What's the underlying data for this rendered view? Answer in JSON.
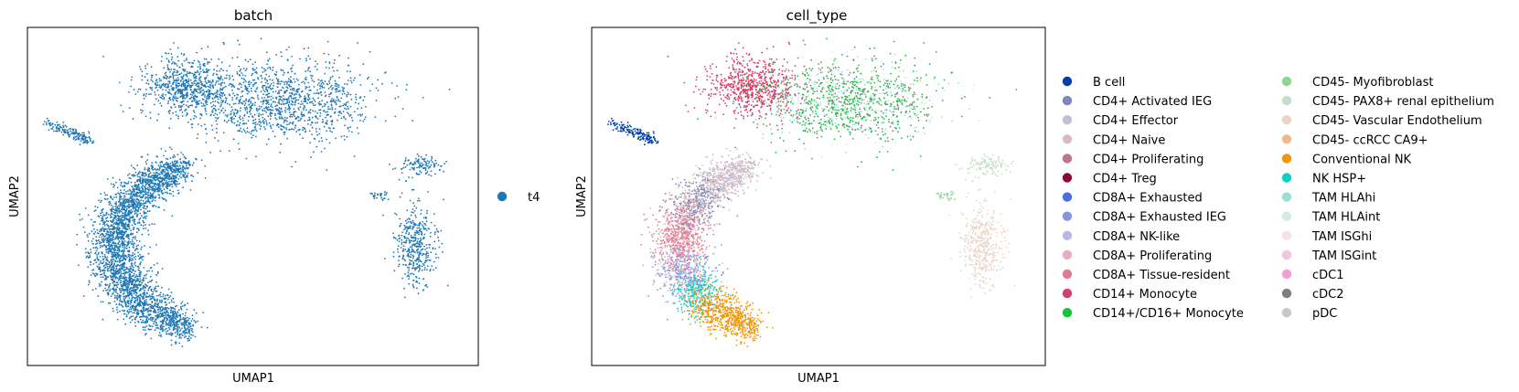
{
  "chart_data": [
    {
      "type": "scatter",
      "title": "batch",
      "xlabel": "UMAP1",
      "ylabel": "UMAP2",
      "ticks": "none",
      "legend": {
        "placement": "right",
        "columns": 1,
        "entries": [
          {
            "name": "t4",
            "color": "#1f77b4"
          }
        ]
      }
    },
    {
      "type": "scatter",
      "title": "cell_type",
      "xlabel": "UMAP1",
      "ylabel": "UMAP2",
      "ticks": "none",
      "legend": {
        "placement": "right",
        "columns": 2,
        "entries": [
          {
            "name": "B cell",
            "color": "#023fa5"
          },
          {
            "name": "CD4+ Activated IEG",
            "color": "#7d87b9"
          },
          {
            "name": "CD4+ Effector",
            "color": "#bec1d4"
          },
          {
            "name": "CD4+ Naive",
            "color": "#d6bcc0"
          },
          {
            "name": "CD4+ Proliferating",
            "color": "#bb7784"
          },
          {
            "name": "CD4+ Treg",
            "color": "#8e063b"
          },
          {
            "name": "CD8A+ Exhausted",
            "color": "#4a6fe3"
          },
          {
            "name": "CD8A+ Exhausted IEG",
            "color": "#8595e1"
          },
          {
            "name": "CD8A+ NK-like",
            "color": "#b5bbe3"
          },
          {
            "name": "CD8A+ Proliferating",
            "color": "#e6afb9"
          },
          {
            "name": "CD8A+ Tissue-resident",
            "color": "#e07b91"
          },
          {
            "name": "CD14+ Monocyte",
            "color": "#d33f6a"
          },
          {
            "name": "CD14+/CD16+ Monocyte",
            "color": "#11c638"
          },
          {
            "name": "CD45- Myofibroblast",
            "color": "#8dd593"
          },
          {
            "name": "CD45- PAX8+ renal epithelium",
            "color": "#c6dec7"
          },
          {
            "name": "CD45- Vascular Endothelium",
            "color": "#ead3c6"
          },
          {
            "name": "CD45- ccRCC CA9+",
            "color": "#f0b98d"
          },
          {
            "name": "Conventional NK",
            "color": "#ef9708"
          },
          {
            "name": "NK HSP+",
            "color": "#0fcfc0"
          },
          {
            "name": "TAM HLAhi",
            "color": "#9cded6"
          },
          {
            "name": "TAM HLAint",
            "color": "#d5eae7"
          },
          {
            "name": "TAM ISGhi",
            "color": "#f3e1eb"
          },
          {
            "name": "TAM ISGint",
            "color": "#f6c4e1"
          },
          {
            "name": "cDC1",
            "color": "#f79cd4"
          },
          {
            "name": "cDC2",
            "color": "#7f7f7f"
          },
          {
            "name": "pDC",
            "color": "#c7c7c7"
          }
        ]
      }
    }
  ]
}
